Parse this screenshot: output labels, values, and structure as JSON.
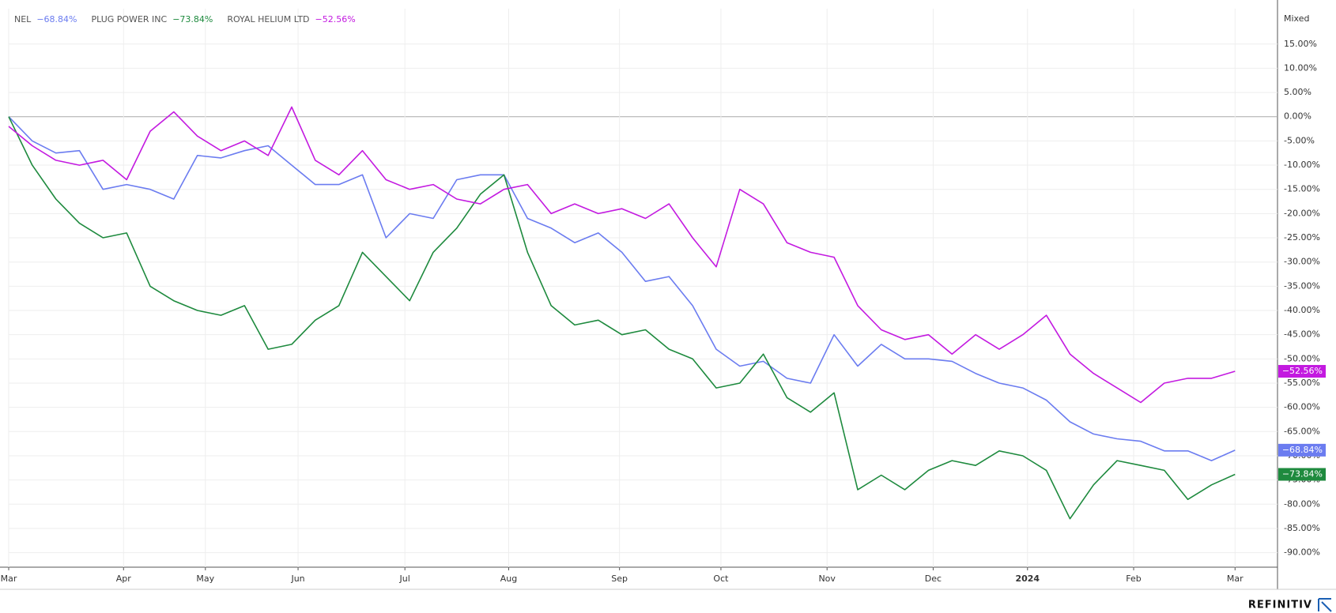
{
  "chart_data": {
    "type": "line",
    "scale_label": "Mixed",
    "branding": "REFINITIV",
    "x": [
      0,
      1,
      2,
      3,
      4,
      5,
      6,
      7,
      8,
      9,
      10,
      11,
      12,
      13,
      14,
      15,
      16,
      17,
      18,
      19,
      20,
      21,
      22,
      23,
      24,
      25,
      26,
      27,
      28,
      29,
      30,
      31,
      32,
      33,
      34,
      35,
      36,
      37,
      38,
      39,
      40,
      41,
      42,
      43,
      44,
      45,
      46,
      47,
      48,
      49,
      50,
      51,
      52
    ],
    "xlim": [
      0,
      53.8
    ],
    "xticks": [
      {
        "value": 0,
        "label": "Mar"
      },
      {
        "value": 4.87,
        "label": "Apr"
      },
      {
        "value": 8.34,
        "label": "May"
      },
      {
        "value": 12.27,
        "label": "Jun"
      },
      {
        "value": 16.8,
        "label": "Jul"
      },
      {
        "value": 21.2,
        "label": "Aug"
      },
      {
        "value": 25.9,
        "label": "Sep"
      },
      {
        "value": 30.2,
        "label": "Oct"
      },
      {
        "value": 34.7,
        "label": "Nov"
      },
      {
        "value": 39.2,
        "label": "Dec"
      },
      {
        "value": 43.2,
        "label": "2024"
      },
      {
        "value": 47.7,
        "label": "Feb"
      },
      {
        "value": 52,
        "label": "Mar"
      }
    ],
    "ylim": [
      -93,
      22.3
    ],
    "yticks": [
      {
        "value": -90,
        "label": "-90.00%"
      },
      {
        "value": -85,
        "label": "-85.00%"
      },
      {
        "value": -80,
        "label": "-80.00%"
      },
      {
        "value": -75,
        "label": "-75.00%"
      },
      {
        "value": -70,
        "label": "-70.00%"
      },
      {
        "value": -65,
        "label": "-65.00%"
      },
      {
        "value": -60,
        "label": "-60.00%"
      },
      {
        "value": -55,
        "label": "-55.00%"
      },
      {
        "value": -50,
        "label": "-50.00%"
      },
      {
        "value": -45,
        "label": "-45.00%"
      },
      {
        "value": -40,
        "label": "-40.00%"
      },
      {
        "value": -35,
        "label": "-35.00%"
      },
      {
        "value": -30,
        "label": "-30.00%"
      },
      {
        "value": -25,
        "label": "-25.00%"
      },
      {
        "value": -20,
        "label": "-20.00%"
      },
      {
        "value": -15,
        "label": "-15.00%"
      },
      {
        "value": -10,
        "label": "-10.00%"
      },
      {
        "value": -5,
        "label": "-5.00%"
      },
      {
        "value": 0,
        "label": "0.00%"
      },
      {
        "value": 5,
        "label": "5.00%"
      },
      {
        "value": 10,
        "label": "10.00%"
      },
      {
        "value": 15,
        "label": "15.00%"
      }
    ],
    "grid": true,
    "series": [
      {
        "name": "NEL",
        "color": "#6b7cf0",
        "last_label": "−68.84%",
        "values": [
          0,
          -5,
          -7.5,
          -7,
          -15,
          -14,
          -15,
          -17,
          -8,
          -8.5,
          -7,
          -6,
          -10,
          -14,
          -14,
          -12,
          -25,
          -20,
          -21,
          -13,
          -12,
          -12,
          -21,
          -23,
          -26,
          -24,
          -28,
          -34,
          -33,
          -39,
          -48,
          -51.5,
          -50.5,
          -54,
          -55,
          -45,
          -51.5,
          -47,
          -50,
          -50,
          -50.5,
          -53,
          -55,
          -56,
          -58.5,
          -63,
          -65.5,
          -66.5,
          -67,
          -69,
          -69,
          -71,
          -68.84
        ]
      },
      {
        "name": "PLUG POWER INC",
        "color": "#1e8a3e",
        "last_label": "−73.84%",
        "values": [
          0,
          -10,
          -17,
          -22,
          -25,
          -24,
          -35,
          -38,
          -40,
          -41,
          -39,
          -48,
          -47,
          -42,
          -39,
          -28,
          -33,
          -38,
          -28,
          -23,
          -16,
          -12,
          -28,
          -39,
          -43,
          -42,
          -45,
          -44,
          -48,
          -50,
          -56,
          -55,
          -49,
          -58,
          -61,
          -57,
          -77,
          -74,
          -77,
          -73,
          -71,
          -72,
          -69,
          -70,
          -73,
          -83,
          -76,
          -71,
          -72,
          -73,
          -79,
          -76,
          -73.84
        ]
      },
      {
        "name": "ROYAL HELIUM LTD",
        "color": "#c31ae0",
        "last_label": "−52.56%",
        "values": [
          -2,
          -6,
          -9,
          -10,
          -9,
          -13,
          -3,
          1,
          -4,
          -7,
          -5,
          -8,
          2,
          -9,
          -12,
          -7,
          -13,
          -15,
          -14,
          -17,
          -18,
          -15,
          -14,
          -20,
          -18,
          -20,
          -19,
          -21,
          -18,
          -25,
          -31,
          -15,
          -18,
          -26,
          -28,
          -29,
          -39,
          -44,
          -46,
          -45,
          -49,
          -45,
          -48,
          -45,
          -41,
          -49,
          -53,
          -56,
          -59,
          -55,
          -54,
          -54,
          -52.56
        ]
      }
    ]
  }
}
